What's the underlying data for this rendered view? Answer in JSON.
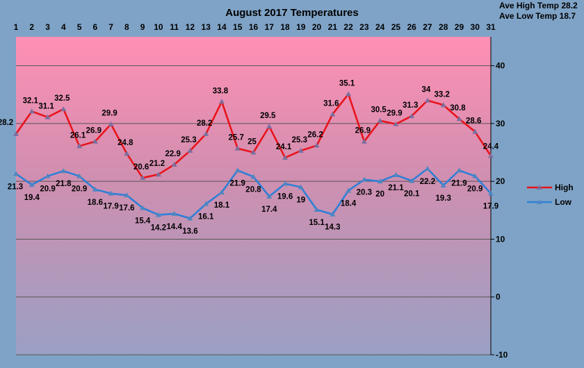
{
  "stats": {
    "ave_high": "Ave High Temp 28.2",
    "ave_low": "Ave Low Temp 18.7"
  },
  "chart_data": {
    "type": "line",
    "title": "August 2017 Temperatures",
    "x": [
      1,
      2,
      3,
      4,
      5,
      6,
      7,
      8,
      9,
      10,
      11,
      12,
      13,
      14,
      15,
      16,
      17,
      18,
      19,
      20,
      21,
      22,
      23,
      24,
      25,
      26,
      27,
      28,
      29,
      30,
      31
    ],
    "ylim": [
      -10,
      45
    ],
    "yticks": [
      -10,
      0,
      10,
      20,
      30,
      40
    ],
    "grid": true,
    "legend_position": "right",
    "series": [
      {
        "name": "High",
        "color": "#e8141b",
        "values": [
          28.2,
          32.1,
          31.1,
          32.5,
          26.1,
          26.9,
          29.9,
          24.8,
          20.6,
          21.2,
          22.9,
          25.3,
          28.2,
          33.8,
          25.7,
          25,
          29.5,
          24.1,
          25.3,
          26.2,
          31.6,
          35.1,
          26.9,
          30.5,
          29.9,
          31.3,
          34,
          33.2,
          30.8,
          28.6,
          24.4
        ]
      },
      {
        "name": "Low",
        "color": "#2f7fd6",
        "values": [
          21.3,
          19.4,
          20.9,
          21.8,
          20.9,
          18.6,
          17.9,
          17.6,
          15.4,
          14.2,
          14.4,
          13.6,
          16.1,
          18.1,
          21.9,
          20.8,
          17.4,
          19.6,
          19,
          15.1,
          14.3,
          18.4,
          20.3,
          20,
          21.1,
          20.1,
          22.2,
          19.3,
          21.9,
          20.9,
          17.9
        ]
      }
    ]
  }
}
